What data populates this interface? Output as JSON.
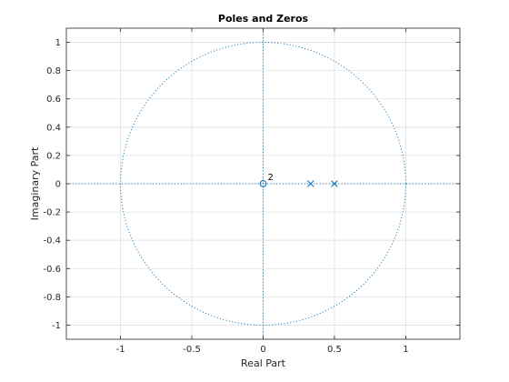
{
  "chart_data": {
    "type": "scatter",
    "title": "Poles and Zeros",
    "xlabel": "Real Part",
    "ylabel": "Imaginary Part",
    "xlim": [
      -1.38,
      1.38
    ],
    "ylim": [
      -1.1,
      1.1
    ],
    "grid": true,
    "x_ticks": [
      -1,
      -0.5,
      0,
      0.5,
      1
    ],
    "x_tick_labels": [
      "-1",
      "-0.5",
      "0",
      "0.5",
      "1"
    ],
    "y_ticks": [
      1,
      0.8,
      0.6,
      0.4,
      0.2,
      0,
      -0.2,
      -0.4,
      -0.6,
      -0.8,
      -1
    ],
    "y_tick_labels": [
      "1",
      "0.8",
      "0.6",
      "0.4",
      "0.2",
      "0",
      "-0.2",
      "-0.4",
      "-0.6",
      "-0.8",
      "-1"
    ],
    "unit_circle": true,
    "zeros": [
      {
        "x": 0,
        "y": 0,
        "multiplicity": 2,
        "label": "2"
      }
    ],
    "poles": [
      {
        "x": 0.3333,
        "y": 0
      },
      {
        "x": 0.5,
        "y": 0
      }
    ],
    "marker_color": "#0072bd",
    "grid_color": "#e0e0e0"
  }
}
